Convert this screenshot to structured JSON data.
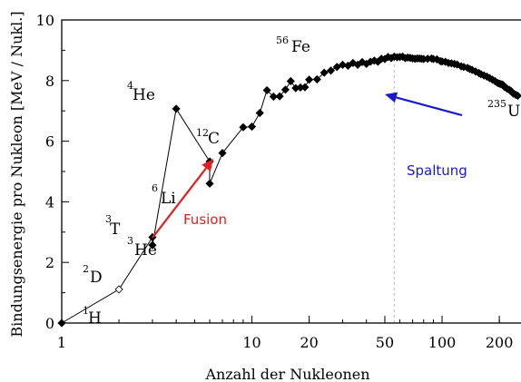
{
  "colors": {
    "fusion_arrow": "#e02020",
    "spaltung_arrow": "#1a1acc",
    "markers": "#000000",
    "guide_line": "#bbbbbb"
  },
  "chart_data": {
    "type": "scatter",
    "xlabel": "Anzahl der Nukleonen",
    "ylabel": "Bindungsenergie pro Nukleon [MeV / Nukl.]",
    "xscale": "log",
    "xlim": [
      1,
      260
    ],
    "ylim": [
      0,
      10
    ],
    "x_ticks": [
      1,
      10,
      20,
      50,
      100,
      200
    ],
    "y_ticks": [
      0,
      2,
      4,
      6,
      8,
      10
    ],
    "grid": false,
    "series": [
      {
        "points": [
          [
            1,
            0.0
          ],
          [
            2,
            1.11
          ],
          [
            3,
            2.83
          ],
          [
            3,
            2.57
          ],
          [
            4,
            7.07
          ],
          [
            6,
            5.33
          ],
          [
            6,
            4.6
          ],
          [
            7,
            5.61
          ],
          [
            9,
            6.46
          ],
          [
            10,
            6.48
          ],
          [
            11,
            6.93
          ],
          [
            12,
            7.68
          ],
          [
            13,
            7.47
          ],
          [
            14,
            7.48
          ],
          [
            15,
            7.7
          ],
          [
            16,
            7.98
          ],
          [
            17,
            7.75
          ],
          [
            18,
            7.77
          ],
          [
            19,
            7.78
          ],
          [
            20,
            8.03
          ],
          [
            22,
            8.04
          ],
          [
            24,
            8.26
          ],
          [
            26,
            8.33
          ],
          [
            28,
            8.45
          ],
          [
            30,
            8.52
          ],
          [
            32,
            8.49
          ],
          [
            34,
            8.58
          ],
          [
            36,
            8.52
          ],
          [
            38,
            8.61
          ],
          [
            40,
            8.55
          ],
          [
            42,
            8.62
          ],
          [
            44,
            8.66
          ],
          [
            46,
            8.62
          ],
          [
            48,
            8.72
          ],
          [
            50,
            8.71
          ],
          [
            52,
            8.78
          ],
          [
            54,
            8.74
          ],
          [
            56,
            8.79
          ],
          [
            58,
            8.77
          ],
          [
            60,
            8.78
          ],
          [
            62,
            8.79
          ],
          [
            64,
            8.74
          ],
          [
            66,
            8.76
          ],
          [
            68,
            8.75
          ],
          [
            70,
            8.73
          ],
          [
            72,
            8.72
          ],
          [
            74,
            8.73
          ],
          [
            76,
            8.73
          ],
          [
            78,
            8.72
          ],
          [
            80,
            8.71
          ],
          [
            84,
            8.72
          ],
          [
            88,
            8.73
          ],
          [
            90,
            8.71
          ],
          [
            94,
            8.7
          ],
          [
            98,
            8.64
          ],
          [
            100,
            8.63
          ],
          [
            104,
            8.62
          ],
          [
            108,
            8.58
          ],
          [
            112,
            8.57
          ],
          [
            116,
            8.55
          ],
          [
            120,
            8.53
          ],
          [
            126,
            8.47
          ],
          [
            130,
            8.45
          ],
          [
            136,
            8.42
          ],
          [
            140,
            8.38
          ],
          [
            144,
            8.35
          ],
          [
            150,
            8.3
          ],
          [
            156,
            8.25
          ],
          [
            160,
            8.21
          ],
          [
            166,
            8.17
          ],
          [
            172,
            8.13
          ],
          [
            178,
            8.08
          ],
          [
            184,
            8.03
          ],
          [
            190,
            7.98
          ],
          [
            196,
            7.92
          ],
          [
            200,
            7.9
          ],
          [
            204,
            7.88
          ],
          [
            208,
            7.87
          ],
          [
            212,
            7.8
          ],
          [
            216,
            7.77
          ],
          [
            220,
            7.73
          ],
          [
            226,
            7.69
          ],
          [
            230,
            7.66
          ],
          [
            235,
            7.59
          ],
          [
            238,
            7.57
          ],
          [
            244,
            7.53
          ],
          [
            250,
            7.5
          ]
        ]
      }
    ],
    "annotations": [
      {
        "mass": "1",
        "symbol": "H"
      },
      {
        "mass": "2",
        "symbol": "D"
      },
      {
        "mass": "3",
        "symbol": "T"
      },
      {
        "mass": "3",
        "symbol": "He"
      },
      {
        "mass": "4",
        "symbol": "He"
      },
      {
        "mass": "6",
        "symbol": "Li"
      },
      {
        "mass": "12",
        "symbol": "C"
      },
      {
        "mass": "56",
        "symbol": "Fe"
      },
      {
        "mass": "235",
        "symbol": "U"
      }
    ],
    "arrow_labels": {
      "fusion": "Fusion",
      "spaltung": "Spaltung"
    }
  }
}
